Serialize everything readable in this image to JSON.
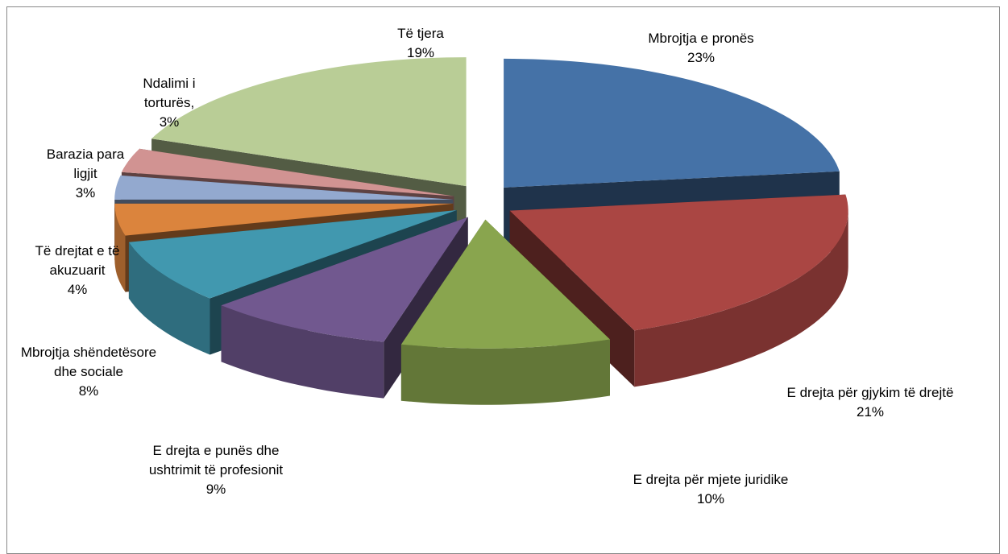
{
  "chart_data": {
    "type": "pie",
    "categories": [
      "Mbrojtja e pronës",
      "E drejta për gjykim të drejtë",
      "E drejta për mjete juridike",
      "E drejta e punës  dhe ushtrimit të profesionit",
      "Mbrojtja shëndetësore dhe sociale",
      "Të drejtat e të akuzuarit",
      "Barazia para ligjit",
      "Ndalimi i torturës,",
      "Të tjera"
    ],
    "values": [
      23,
      21,
      10,
      9,
      8,
      4,
      3,
      3,
      19
    ],
    "value_labels": [
      "23%",
      "21%",
      "10%",
      "9%",
      "8%",
      "4%",
      "3%",
      "3%",
      "19%"
    ],
    "colors": [
      "#4572a7",
      "#aa4643",
      "#89a54e",
      "#71588f",
      "#4198af",
      "#db843d",
      "#93a9cf",
      "#d19392",
      "#b9cd96"
    ]
  }
}
